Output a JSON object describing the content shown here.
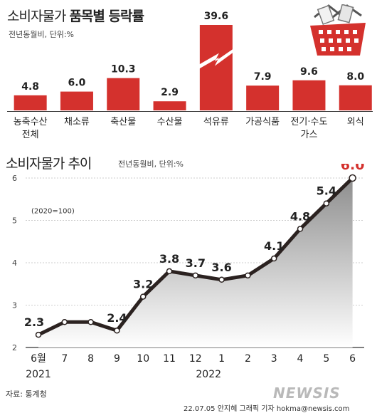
{
  "header": {
    "title_normal": "소비자물가",
    "title_bold": "품목별 등락률",
    "unit": "전년동월비, 단위:%"
  },
  "chart2_header": {
    "title": "소비자물가 추이",
    "unit": "전년동월비, 단위:%"
  },
  "footer": {
    "source": "자료: 통계청",
    "credit": "22.07.05 안지혜 그래픽 기자 hokma@newsis.com",
    "logo": "NEWSIS"
  },
  "colors": {
    "bar": "#d4312d",
    "line": "#2b2220",
    "highlight": "#d4312d"
  },
  "chart_data": [
    {
      "type": "bar",
      "categories": [
        "농축수산\n전체",
        "채소류",
        "축산물",
        "수산물",
        "석유류",
        "가공식품",
        "전기·수도\n가스",
        "외식"
      ],
      "values": [
        4.8,
        6.0,
        10.3,
        2.9,
        39.6,
        7.9,
        9.6,
        8.0
      ],
      "axis_break_on": "석유류"
    },
    {
      "type": "line",
      "x": [
        "6월",
        "7",
        "8",
        "9",
        "10",
        "11",
        "12",
        "1",
        "2",
        "3",
        "4",
        "5",
        "6"
      ],
      "year_labels": [
        {
          "label": "2021",
          "at": "6월"
        },
        {
          "label": "2022",
          "at": "12"
        }
      ],
      "values": [
        2.3,
        2.6,
        2.6,
        2.4,
        3.2,
        3.8,
        3.7,
        3.6,
        3.7,
        4.1,
        4.8,
        5.4,
        6.0
      ],
      "labels": [
        "2.3",
        "",
        "",
        "2.4",
        "3.2",
        "3.8",
        "3.7",
        "3.6",
        "",
        "4.1",
        "4.8",
        "5.4",
        "6.0"
      ],
      "yticks": [
        2,
        3,
        4,
        5,
        6
      ],
      "ylim": [
        2,
        6
      ],
      "annotation": "(2020=100)"
    }
  ]
}
